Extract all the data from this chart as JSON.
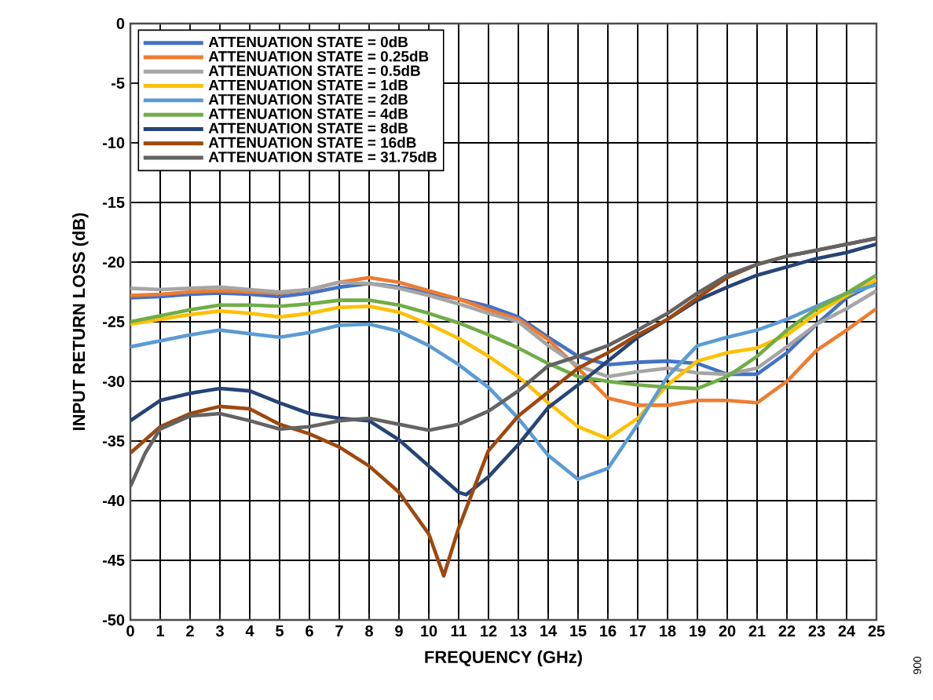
{
  "chart_data": {
    "type": "line",
    "xlabel": "FREQUENCY (GHz)",
    "ylabel": "INPUT RETURN LOSS (dB)",
    "xlim": [
      0,
      25
    ],
    "ylim": [
      -50,
      0
    ],
    "xticks": [
      0,
      1,
      2,
      3,
      4,
      5,
      6,
      7,
      8,
      9,
      10,
      11,
      12,
      13,
      14,
      15,
      16,
      17,
      18,
      19,
      20,
      21,
      22,
      23,
      24,
      25
    ],
    "yticks": [
      -50,
      -45,
      -40,
      -35,
      -30,
      -25,
      -20,
      -15,
      -10,
      -5,
      0
    ],
    "grid": true,
    "legend": "top left",
    "line_style": "solid",
    "marker": "none",
    "annotations": [
      "006"
    ],
    "series": [
      {
        "name": "ATTENUATION STATE = 0dB",
        "color": "#4472c4",
        "x": [
          0,
          1,
          2,
          3,
          4,
          5,
          6,
          7,
          8,
          9,
          10,
          11,
          12,
          13,
          14,
          15,
          16,
          17,
          18,
          19,
          20,
          21,
          22,
          23,
          24,
          25
        ],
        "values": [
          -23.0,
          -22.9,
          -22.7,
          -22.6,
          -22.7,
          -22.9,
          -22.6,
          -22.1,
          -21.8,
          -22.1,
          -22.6,
          -23.1,
          -23.7,
          -24.6,
          -26.3,
          -27.9,
          -28.6,
          -28.4,
          -28.3,
          -28.5,
          -29.4,
          -29.4,
          -27.6,
          -25.2,
          -23.0,
          -21.7
        ]
      },
      {
        "name": "ATTENUATION STATE = 0.25dB",
        "color": "#ed7d31",
        "x": [
          0,
          1,
          2,
          3,
          4,
          5,
          6,
          7,
          8,
          9,
          10,
          11,
          12,
          13,
          14,
          15,
          16,
          17,
          18,
          19,
          20,
          21,
          22,
          23,
          24,
          25
        ],
        "values": [
          -22.8,
          -22.7,
          -22.5,
          -22.4,
          -22.5,
          -22.6,
          -22.3,
          -21.7,
          -21.3,
          -21.7,
          -22.4,
          -23.1,
          -24.0,
          -24.8,
          -26.5,
          -28.9,
          -31.4,
          -32.0,
          -32.0,
          -31.6,
          -31.6,
          -31.8,
          -30.0,
          -27.4,
          -25.7,
          -23.9
        ]
      },
      {
        "name": "ATTENUATION STATE = 0.5dB",
        "color": "#a5a5a5",
        "x": [
          0,
          1,
          2,
          3,
          4,
          5,
          6,
          7,
          8,
          9,
          10,
          11,
          12,
          13,
          14,
          15,
          16,
          17,
          18,
          19,
          20,
          21,
          22,
          23,
          24,
          25
        ],
        "values": [
          -22.2,
          -22.3,
          -22.2,
          -22.1,
          -22.3,
          -22.5,
          -22.3,
          -21.7,
          -21.8,
          -22.2,
          -22.8,
          -23.5,
          -24.3,
          -25.0,
          -27.0,
          -28.7,
          -29.6,
          -29.2,
          -28.9,
          -29.3,
          -29.4,
          -28.9,
          -27.1,
          -25.2,
          -23.9,
          -22.4
        ]
      },
      {
        "name": "ATTENUATION STATE = 1dB",
        "color": "#ffc000",
        "x": [
          0,
          1,
          2,
          3,
          4,
          5,
          6,
          7,
          8,
          9,
          10,
          11,
          12,
          13,
          14,
          15,
          16,
          17,
          18,
          19,
          20,
          21,
          22,
          23,
          24,
          25
        ],
        "values": [
          -25.2,
          -24.8,
          -24.4,
          -24.1,
          -24.3,
          -24.6,
          -24.3,
          -23.8,
          -23.7,
          -24.2,
          -25.2,
          -26.4,
          -27.9,
          -29.6,
          -31.8,
          -33.8,
          -34.8,
          -33.1,
          -30.3,
          -28.3,
          -27.6,
          -27.2,
          -26.1,
          -24.3,
          -22.8,
          -21.5
        ]
      },
      {
        "name": "ATTENUATION STATE = 2dB",
        "color": "#5b9bd5",
        "x": [
          0,
          1,
          2,
          3,
          4,
          5,
          6,
          7,
          8,
          9,
          10,
          11,
          12,
          13,
          14,
          15,
          16,
          17,
          18,
          19,
          20,
          21,
          22,
          23,
          24,
          25
        ],
        "values": [
          -27.1,
          -26.6,
          -26.1,
          -25.7,
          -26.0,
          -26.3,
          -25.9,
          -25.3,
          -25.2,
          -25.8,
          -27.0,
          -28.6,
          -30.5,
          -33.1,
          -36.2,
          -38.2,
          -37.3,
          -33.6,
          -29.6,
          -27.0,
          -26.3,
          -25.7,
          -24.8,
          -23.7,
          -22.6,
          -21.9
        ]
      },
      {
        "name": "ATTENUATION STATE = 4dB",
        "color": "#70ad47",
        "x": [
          0,
          1,
          2,
          3,
          4,
          5,
          6,
          7,
          8,
          9,
          10,
          11,
          12,
          13,
          14,
          15,
          16,
          17,
          18,
          19,
          20,
          21,
          22,
          23,
          24,
          25
        ],
        "values": [
          -25.0,
          -24.5,
          -24.0,
          -23.6,
          -23.6,
          -23.7,
          -23.5,
          -23.2,
          -23.2,
          -23.6,
          -24.3,
          -25.1,
          -26.1,
          -27.2,
          -28.5,
          -29.6,
          -30.0,
          -30.3,
          -30.5,
          -30.6,
          -29.6,
          -27.9,
          -25.7,
          -23.9,
          -22.6,
          -21.1
        ]
      },
      {
        "name": "ATTENUATION STATE = 8dB",
        "color": "#264478",
        "x": [
          0,
          1,
          2,
          3,
          4,
          5,
          6,
          7,
          8,
          9,
          10,
          11,
          11.25,
          12,
          13,
          14,
          15,
          16,
          17,
          18,
          19,
          20,
          21,
          22,
          23,
          24,
          25
        ],
        "values": [
          -33.3,
          -31.6,
          -31.0,
          -30.6,
          -30.8,
          -31.8,
          -32.7,
          -33.1,
          -33.3,
          -34.9,
          -37.1,
          -39.3,
          -39.5,
          -38.0,
          -35.3,
          -32.2,
          -30.3,
          -28.3,
          -26.3,
          -24.8,
          -23.2,
          -22.1,
          -21.1,
          -20.4,
          -19.7,
          -19.2,
          -18.5
        ]
      },
      {
        "name": "ATTENUATION STATE = 16dB",
        "color": "#9e480e",
        "x": [
          0,
          1,
          2,
          3,
          4,
          5,
          6,
          7,
          8,
          9,
          10,
          10.5,
          11,
          12,
          13,
          14,
          15,
          16,
          17,
          18,
          19,
          20,
          21,
          22,
          23,
          24,
          25
        ],
        "values": [
          -36.0,
          -33.8,
          -32.7,
          -32.1,
          -32.3,
          -33.6,
          -34.4,
          -35.5,
          -37.1,
          -39.3,
          -42.8,
          -46.3,
          -42.3,
          -35.8,
          -32.9,
          -30.9,
          -28.9,
          -27.6,
          -26.1,
          -24.8,
          -23.0,
          -21.3,
          -20.2,
          -19.5,
          -19.0,
          -18.5,
          -18.0
        ]
      },
      {
        "name": "ATTENUATION STATE = 31.75dB",
        "color": "#636363",
        "x": [
          0,
          0.5,
          1,
          2,
          3,
          4,
          5,
          6,
          7,
          8,
          9,
          10,
          11,
          12,
          13,
          14,
          15,
          16,
          17,
          18,
          19,
          20,
          21,
          22,
          23,
          24,
          25
        ],
        "values": [
          -38.8,
          -36.0,
          -34.0,
          -32.9,
          -32.7,
          -33.3,
          -34.0,
          -33.8,
          -33.3,
          -33.1,
          -33.6,
          -34.1,
          -33.6,
          -32.5,
          -30.8,
          -28.7,
          -27.9,
          -27.0,
          -25.7,
          -24.3,
          -22.6,
          -21.1,
          -20.2,
          -19.5,
          -19.0,
          -18.5,
          -18.0
        ]
      }
    ]
  }
}
